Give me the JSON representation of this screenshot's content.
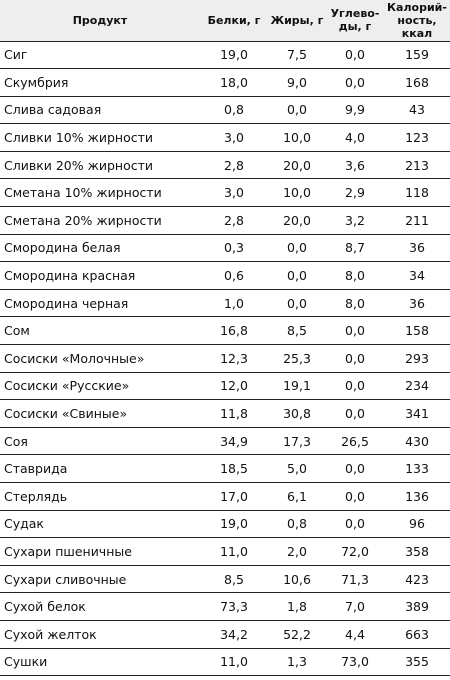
{
  "table": {
    "headers": {
      "product": "Продукт",
      "protein": "Белки, г",
      "fat": "Жиры, г",
      "carbs_line1": "Углево-",
      "carbs_line2": "ды, г",
      "calories_line1": "Калорий-",
      "calories_line2": "ность, ккал"
    },
    "rows": [
      {
        "name": "Сиг",
        "protein": "19,0",
        "fat": "7,5",
        "carbs": "0,0",
        "kcal": "159"
      },
      {
        "name": "Скумбрия",
        "protein": "18,0",
        "fat": "9,0",
        "carbs": "0,0",
        "kcal": "168"
      },
      {
        "name": "Слива садовая",
        "protein": "0,8",
        "fat": "0,0",
        "carbs": "9,9",
        "kcal": "43"
      },
      {
        "name": "Сливки 10% жирности",
        "protein": "3,0",
        "fat": "10,0",
        "carbs": "4,0",
        "kcal": "123"
      },
      {
        "name": "Сливки 20% жирности",
        "protein": "2,8",
        "fat": "20,0",
        "carbs": "3,6",
        "kcal": "213"
      },
      {
        "name": "Сметана 10% жирности",
        "protein": "3,0",
        "fat": "10,0",
        "carbs": "2,9",
        "kcal": "118"
      },
      {
        "name": "Сметана 20% жирности",
        "protein": "2,8",
        "fat": "20,0",
        "carbs": "3,2",
        "kcal": "211"
      },
      {
        "name": "Смородина белая",
        "protein": "0,3",
        "fat": "0,0",
        "carbs": "8,7",
        "kcal": "36"
      },
      {
        "name": "Смородина красная",
        "protein": "0,6",
        "fat": "0,0",
        "carbs": "8,0",
        "kcal": "34"
      },
      {
        "name": "Смородина черная",
        "protein": "1,0",
        "fat": "0,0",
        "carbs": "8,0",
        "kcal": "36"
      },
      {
        "name": "Сом",
        "protein": "16,8",
        "fat": "8,5",
        "carbs": "0,0",
        "kcal": "158"
      },
      {
        "name": "Сосиски «Молочные»",
        "protein": "12,3",
        "fat": "25,3",
        "carbs": "0,0",
        "kcal": "293"
      },
      {
        "name": "Сосиски «Русские»",
        "protein": "12,0",
        "fat": "19,1",
        "carbs": "0,0",
        "kcal": "234"
      },
      {
        "name": "Сосиски «Свиные»",
        "protein": "11,8",
        "fat": "30,8",
        "carbs": "0,0",
        "kcal": "341"
      },
      {
        "name": "Соя",
        "protein": "34,9",
        "fat": "17,3",
        "carbs": "26,5",
        "kcal": "430"
      },
      {
        "name": "Ставрида",
        "protein": "18,5",
        "fat": "5,0",
        "carbs": "0,0",
        "kcal": "133"
      },
      {
        "name": "Стерлядь",
        "protein": "17,0",
        "fat": "6,1",
        "carbs": "0,0",
        "kcal": "136"
      },
      {
        "name": "Судак",
        "protein": "19,0",
        "fat": "0,8",
        "carbs": "0,0",
        "kcal": "96"
      },
      {
        "name": "Сухари пшеничные",
        "protein": "11,0",
        "fat": "2,0",
        "carbs": "72,0",
        "kcal": "358"
      },
      {
        "name": "Сухари сливочные",
        "protein": "8,5",
        "fat": "10,6",
        "carbs": "71,3",
        "kcal": "423"
      },
      {
        "name": "Сухой белок",
        "protein": "73,3",
        "fat": "1,8",
        "carbs": "7,0",
        "kcal": "389"
      },
      {
        "name": "Сухой желток",
        "protein": "34,2",
        "fat": "52,2",
        "carbs": "4,4",
        "kcal": "663"
      },
      {
        "name": "Сушки",
        "protein": "11,0",
        "fat": "1,3",
        "carbs": "73,0",
        "kcal": "355"
      }
    ]
  }
}
